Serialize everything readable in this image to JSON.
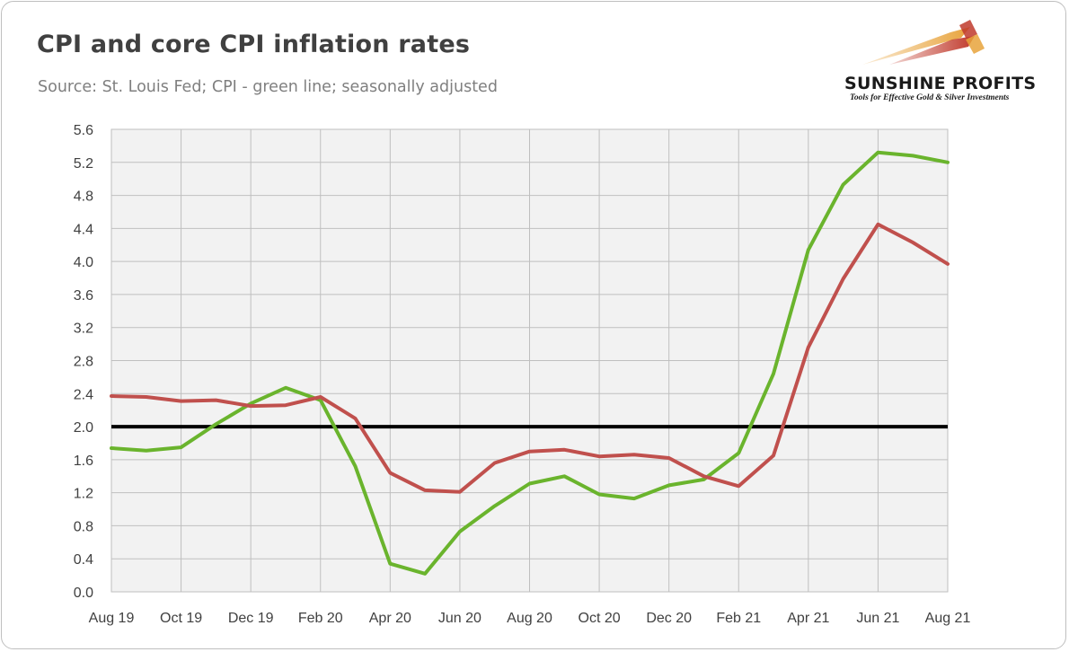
{
  "header": {
    "title": "CPI and core CPI inflation rates",
    "subtitle": "Source: St. Louis Fed; CPI - green line; seasonally adjusted"
  },
  "logo": {
    "name": "SUNSHINE PROFITS",
    "tagline": "Tools for Effective Gold & Silver Investments"
  },
  "chart_data": {
    "type": "line",
    "title": "CPI and core CPI inflation rates",
    "x": [
      "Aug 19",
      "Sep 19",
      "Oct 19",
      "Nov 19",
      "Dec 19",
      "Jan 20",
      "Feb 20",
      "Mar 20",
      "Apr 20",
      "May 20",
      "Jun 20",
      "Jul 20",
      "Aug 20",
      "Sep 20",
      "Oct 20",
      "Nov 20",
      "Dec 20",
      "Jan 21",
      "Feb 21",
      "Mar 21",
      "Apr 21",
      "May 21",
      "Jun 21",
      "Jul 21",
      "Aug 21"
    ],
    "xtick_labels": [
      "Aug 19",
      "Oct 19",
      "Dec 19",
      "Feb 20",
      "Apr 20",
      "Jun 20",
      "Aug 20",
      "Oct 20",
      "Dec 20",
      "Feb 21",
      "Apr 21",
      "Jun 21",
      "Aug 21"
    ],
    "ylim": [
      0,
      5.6
    ],
    "yticks": [
      "0.0",
      "0.4",
      "0.8",
      "1.2",
      "1.6",
      "2.0",
      "2.4",
      "2.8",
      "3.2",
      "3.6",
      "4.0",
      "4.4",
      "4.8",
      "5.2",
      "5.6"
    ],
    "grid": true,
    "series": [
      {
        "color": "#6ab42d",
        "values": [
          1.74,
          1.71,
          1.75,
          2.03,
          2.28,
          2.47,
          2.32,
          1.52,
          0.34,
          0.22,
          0.73,
          1.04,
          1.31,
          1.4,
          1.18,
          1.13,
          1.29,
          1.36,
          1.68,
          2.64,
          4.14,
          4.93,
          5.32,
          5.28,
          5.2
        ]
      },
      {
        "color": "#c0504d",
        "values": [
          2.37,
          2.36,
          2.31,
          2.32,
          2.25,
          2.26,
          2.36,
          2.1,
          1.44,
          1.23,
          1.21,
          1.56,
          1.7,
          1.72,
          1.64,
          1.66,
          1.62,
          1.4,
          1.28,
          1.65,
          2.96,
          3.79,
          4.45,
          4.23,
          3.97
        ]
      }
    ],
    "reference_line": {
      "value": 2.0,
      "color": "#000000"
    }
  }
}
